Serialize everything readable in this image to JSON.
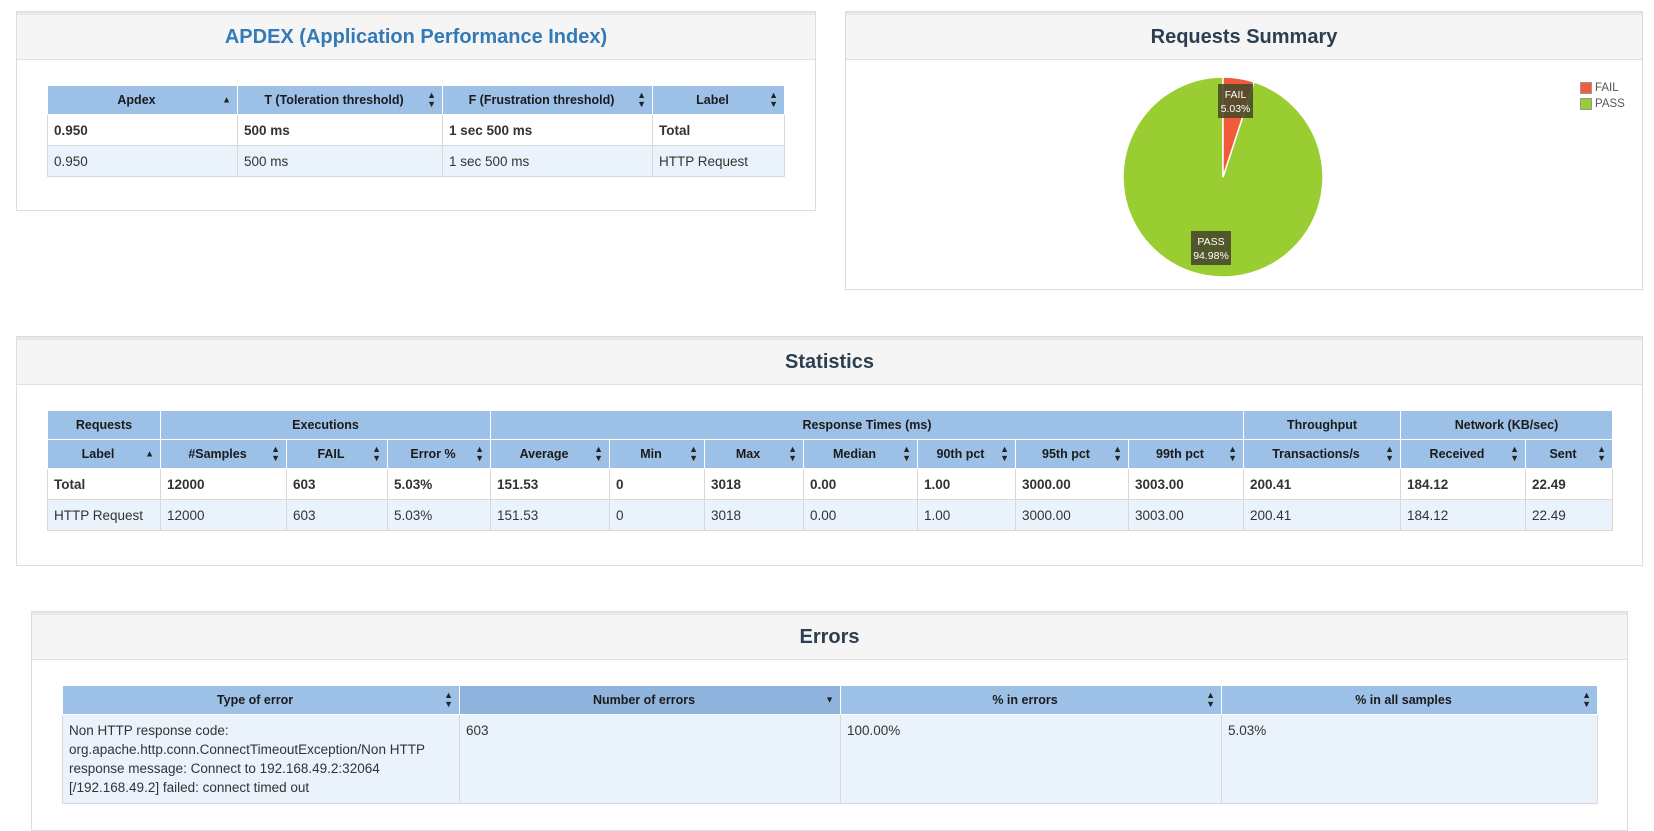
{
  "apdex": {
    "title": "APDEX (Application Performance Index)",
    "headers": [
      "Apdex",
      "T (Toleration threshold)",
      "F (Frustration threshold)",
      "Label"
    ],
    "rows": [
      {
        "apdex": "0.950",
        "t": "500 ms",
        "f": "1 sec 500 ms",
        "label": "Total"
      },
      {
        "apdex": "0.950",
        "t": "500 ms",
        "f": "1 sec 500 ms",
        "label": "HTTP Request"
      }
    ]
  },
  "summary": {
    "title": "Requests Summary",
    "legend": [
      {
        "label": "FAIL",
        "color": "#f15b3c"
      },
      {
        "label": "PASS",
        "color": "#9acd32"
      }
    ],
    "fail_label": "FAIL",
    "fail_pct": "5.03%",
    "pass_label": "PASS",
    "pass_pct": "94.98%",
    "fail_fraction": 0.0503
  },
  "statistics": {
    "title": "Statistics",
    "groups": [
      "Requests",
      "Executions",
      "Response Times (ms)",
      "Throughput",
      "Network (KB/sec)"
    ],
    "headers": [
      "Label",
      "#Samples",
      "FAIL",
      "Error %",
      "Average",
      "Min",
      "Max",
      "Median",
      "90th pct",
      "95th pct",
      "99th pct",
      "Transactions/s",
      "Received",
      "Sent"
    ],
    "rows": [
      [
        "Total",
        "12000",
        "603",
        "5.03%",
        "151.53",
        "0",
        "3018",
        "0.00",
        "1.00",
        "3000.00",
        "3003.00",
        "200.41",
        "184.12",
        "22.49"
      ],
      [
        "HTTP Request",
        "12000",
        "603",
        "5.03%",
        "151.53",
        "0",
        "3018",
        "0.00",
        "1.00",
        "3000.00",
        "3003.00",
        "200.41",
        "184.12",
        "22.49"
      ]
    ]
  },
  "errors": {
    "title": "Errors",
    "headers": [
      "Type of error",
      "Number of errors",
      "% in errors",
      "% in all samples"
    ],
    "rows": [
      {
        "type": "Non HTTP response code: org.apache.http.conn.ConnectTimeoutException/Non HTTP response message: Connect to 192.168.49.2:32064 [/192.168.49.2] failed: connect timed out",
        "count": "603",
        "pct_errors": "100.00%",
        "pct_samples": "5.03%"
      }
    ]
  }
}
